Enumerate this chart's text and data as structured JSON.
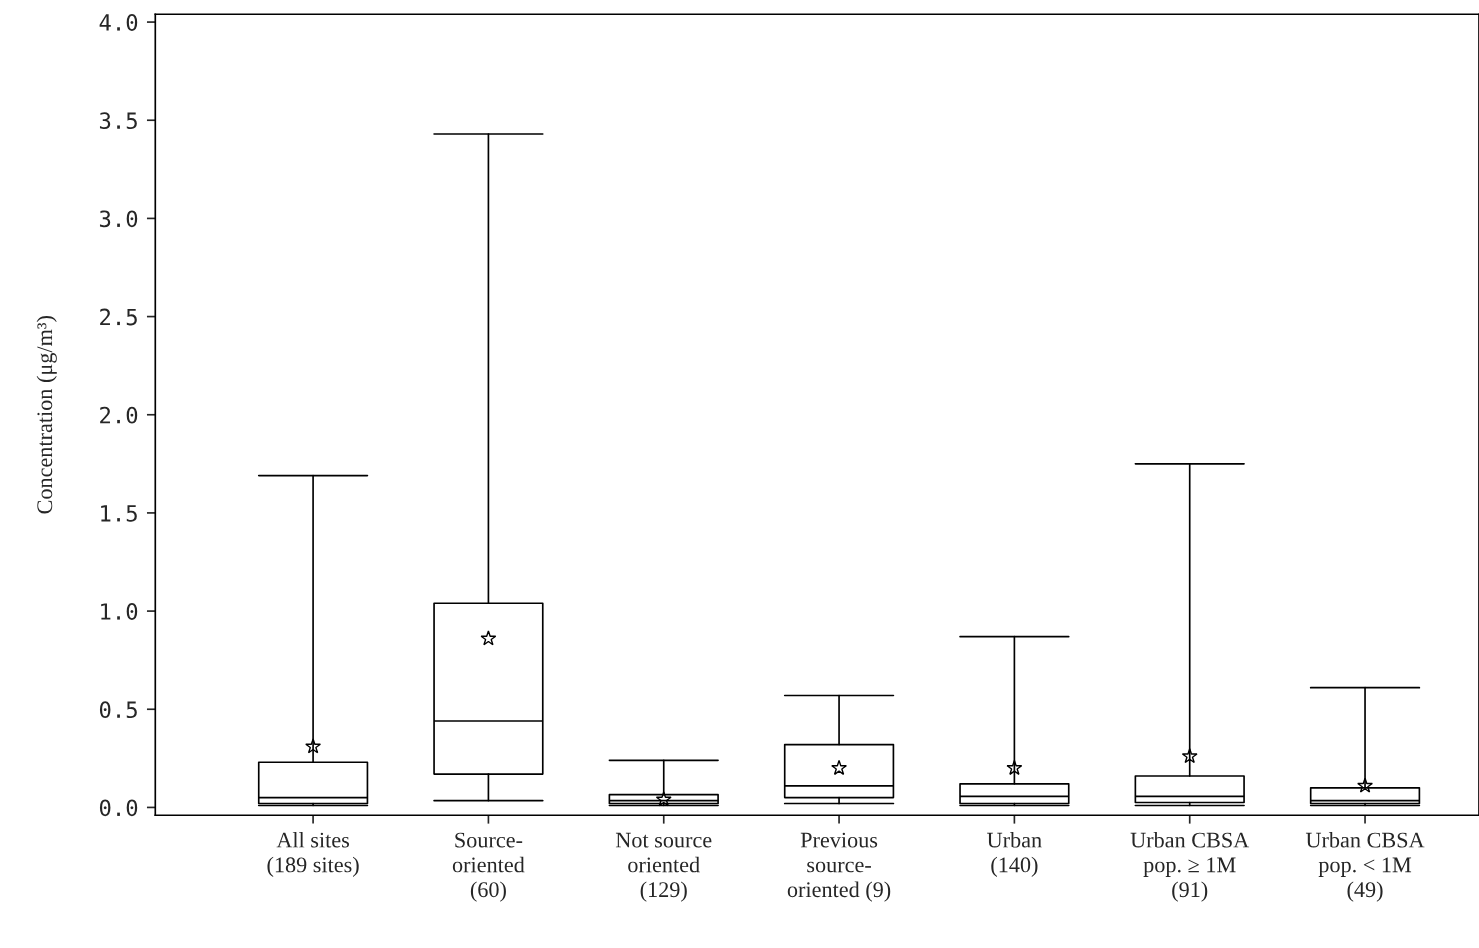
{
  "chart_data": {
    "type": "box",
    "ylabel": "Concentration (μg/m³)",
    "categories": [
      "All sites\n(189 sites)",
      "Source-\noriented\n(60)",
      "Not source\noriented\n(129)",
      "Previous\nsource-\noriented (9)",
      "Urban\n(140)",
      "Urban CBSA\npop. ≥ 1M\n(91)",
      "Urban CBSA\npop. < 1M\n(49)"
    ],
    "boxes": [
      {
        "low": 0.01,
        "q1": 0.02,
        "median": 0.05,
        "q3": 0.23,
        "high": 1.69,
        "mean": 0.31
      },
      {
        "low": 0.035,
        "q1": 0.17,
        "median": 0.44,
        "q3": 1.04,
        "high": 3.43,
        "mean": 0.86
      },
      {
        "low": 0.01,
        "q1": 0.02,
        "median": 0.035,
        "q3": 0.065,
        "high": 0.24,
        "mean": 0.04
      },
      {
        "low": 0.02,
        "q1": 0.05,
        "median": 0.11,
        "q3": 0.32,
        "high": 0.57,
        "mean": 0.2
      },
      {
        "low": 0.01,
        "q1": 0.02,
        "median": 0.056,
        "q3": 0.12,
        "high": 0.87,
        "mean": 0.2
      },
      {
        "low": 0.01,
        "q1": 0.025,
        "median": 0.056,
        "q3": 0.16,
        "high": 1.75,
        "mean": 0.26
      },
      {
        "low": 0.01,
        "q1": 0.02,
        "median": 0.035,
        "q3": 0.1,
        "high": 0.61,
        "mean": 0.11
      }
    ],
    "color": "#000000",
    "marker": "star",
    "ylim": [
      -0.04,
      4.04
    ],
    "yticks": [
      {
        "value": 0,
        "label": "0.0"
      },
      {
        "value": 0.5,
        "label": "0.5"
      },
      {
        "value": 1,
        "label": "1.0"
      },
      {
        "value": 1.5,
        "label": "1.5"
      },
      {
        "value": 2,
        "label": "2.0"
      },
      {
        "value": 2.5,
        "label": "2.5"
      },
      {
        "value": 3,
        "label": "3.0"
      },
      {
        "value": 3.5,
        "label": "3.5"
      },
      {
        "value": 4,
        "label": "4.0"
      }
    ],
    "grid": false
  }
}
